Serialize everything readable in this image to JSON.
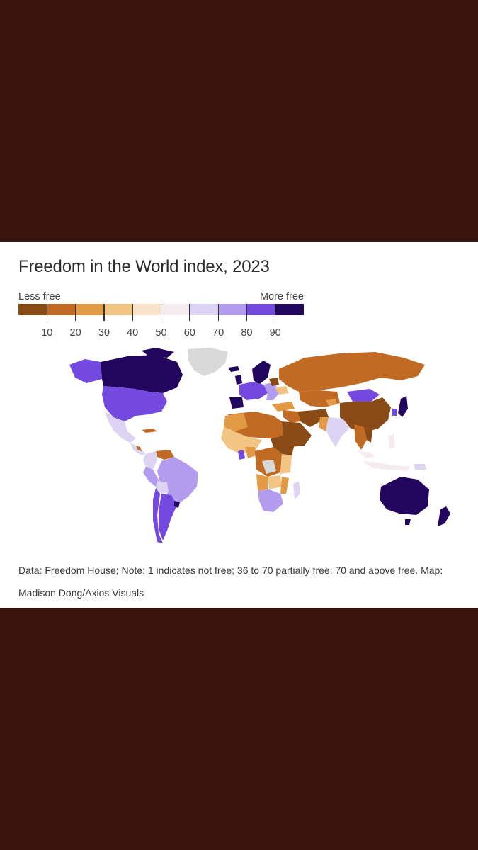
{
  "title": "Freedom in the World index, 2023",
  "legend": {
    "left_label": "Less free",
    "right_label": "More free",
    "ticks": [
      "10",
      "20",
      "30",
      "40",
      "50",
      "60",
      "70",
      "80",
      "90"
    ],
    "colors": [
      "#8a4a15",
      "#c16a24",
      "#e29a45",
      "#f2c585",
      "#f8e2c8",
      "#f4ecee",
      "#ddd3f2",
      "#b39bef",
      "#7449e0",
      "#22065e"
    ],
    "no_data_color": "#d9d9d9"
  },
  "source": "Data: Freedom House; Note: 1 indicates not free; 36 to 70 partially free; 70 and above free. Map: Madison Dong/Axios Visuals"
}
